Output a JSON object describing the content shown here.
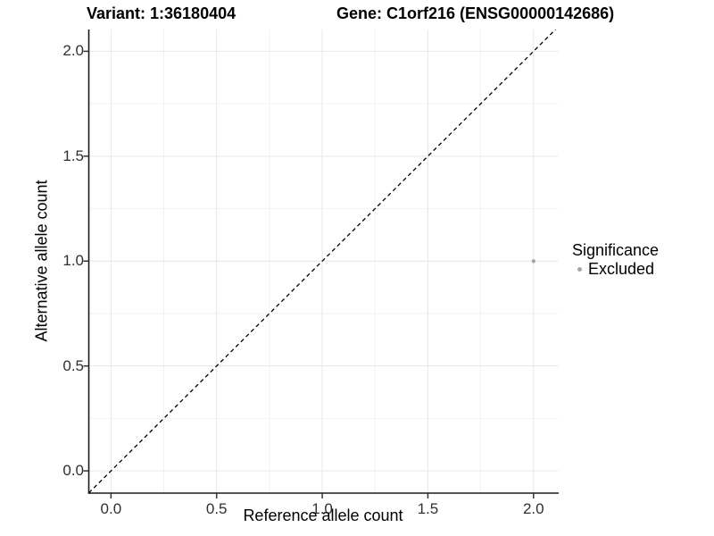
{
  "header": {
    "variant_title": "Variant: 1:36180404",
    "gene_title": "Gene: C1orf216 (ENSG00000142686)"
  },
  "legend": {
    "title": "Significance",
    "items": [
      {
        "label": "Excluded",
        "color": "#A6A6A6"
      }
    ]
  },
  "chart_data": {
    "type": "scatter",
    "title": "Variant: 1:36180404   Gene: C1orf216 (ENSG00000142686)",
    "xlabel": "Reference allele count",
    "ylabel": "Alternative allele count",
    "xlim": [
      -0.105,
      2.115
    ],
    "ylim": [
      -0.106,
      2.104
    ],
    "x_major_ticks": [
      0,
      0.5,
      1,
      1.5,
      2
    ],
    "y_major_ticks": [
      0,
      0.5,
      1,
      1.5,
      2
    ],
    "x_tick_labels": [
      "0.0",
      "0.5",
      "1.0",
      "1.5",
      "2.0"
    ],
    "y_tick_labels": [
      "0.0",
      "0.5",
      "1.0",
      "1.5",
      "2.0"
    ],
    "x_minor_ticks": [
      0.25,
      0.75,
      1.25,
      1.75
    ],
    "y_minor_ticks": [
      0.25,
      0.75,
      1.25,
      1.75
    ],
    "grid": true,
    "legend_position": "right",
    "identity_line": {
      "slope": 1,
      "intercept": 0,
      "style": "dashed",
      "color": "#000000"
    },
    "series": [
      {
        "name": "Excluded",
        "color": "#A6A6A6",
        "points": [
          {
            "x": 2.0,
            "y": 1.0
          }
        ]
      }
    ]
  },
  "colors": {
    "grid_major": "#E6E6E6",
    "grid_minor": "#F2F2F2",
    "axis_line": "#1A1A1A",
    "tick_mark": "#333333",
    "tick_text": "#303030",
    "background": "#FFFFFF"
  }
}
